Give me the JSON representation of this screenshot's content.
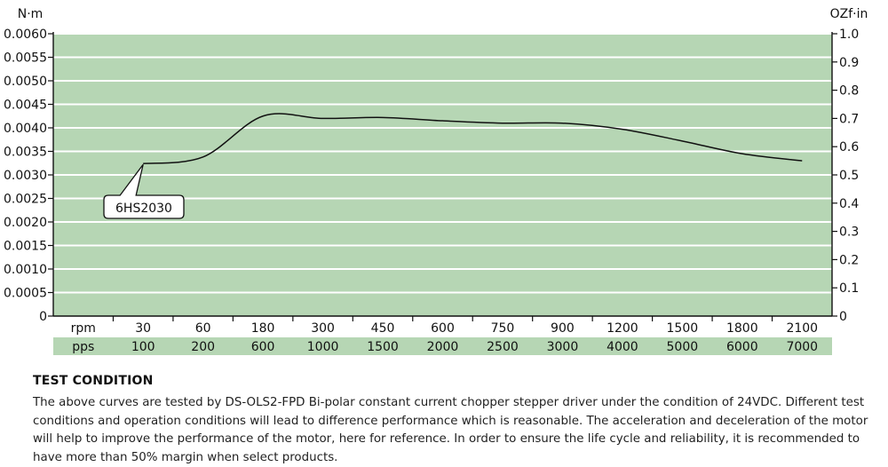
{
  "chart_data": {
    "type": "line",
    "units": {
      "left": "N·m",
      "right": "OZf·in"
    },
    "y_left": {
      "range": [
        0,
        0.006
      ],
      "tick_values": [
        0,
        0.0005,
        0.001,
        0.0015,
        0.002,
        0.0025,
        0.003,
        0.0035,
        0.004,
        0.0045,
        0.005,
        0.0055,
        0.006
      ],
      "tick_labels": [
        "0",
        "0.0005",
        "0.0010",
        "0.0015",
        "0.0020",
        "0.0025",
        "0.0030",
        "0.0035",
        "0.0040",
        "0.0045",
        "0.0050",
        "0.0055",
        "0.0060"
      ]
    },
    "y_right": {
      "range": [
        0,
        1.0
      ],
      "tick_values": [
        0,
        0.1,
        0.2,
        0.3,
        0.4,
        0.5,
        0.6,
        0.7,
        0.8,
        0.9,
        1.0
      ],
      "tick_labels": [
        "0",
        "0.1",
        "0.2",
        "0.3",
        "0.4",
        "0.5",
        "0.6",
        "0.7",
        "0.8",
        "0.9",
        "1.0"
      ]
    },
    "x_rows": [
      {
        "label": "rpm",
        "values": [
          "30",
          "60",
          "180",
          "300",
          "450",
          "600",
          "750",
          "900",
          "1200",
          "1500",
          "1800",
          "2100"
        ]
      },
      {
        "label": "pps",
        "values": [
          "100",
          "200",
          "600",
          "1000",
          "1500",
          "2000",
          "2500",
          "3000",
          "4000",
          "5000",
          "6000",
          "7000"
        ]
      }
    ],
    "series": [
      {
        "name": "6HS2030",
        "color": "#111111",
        "points": [
          {
            "rpm": 30,
            "nm": 0.00324
          },
          {
            "rpm": 60,
            "nm": 0.00338
          },
          {
            "rpm": 180,
            "nm": 0.00425
          },
          {
            "rpm": 300,
            "nm": 0.0042
          },
          {
            "rpm": 450,
            "nm": 0.00422
          },
          {
            "rpm": 600,
            "nm": 0.00415
          },
          {
            "rpm": 750,
            "nm": 0.0041
          },
          {
            "rpm": 900,
            "nm": 0.0041
          },
          {
            "rpm": 1200,
            "nm": 0.00397
          },
          {
            "rpm": 1500,
            "nm": 0.00372
          },
          {
            "rpm": 1800,
            "nm": 0.00345
          },
          {
            "rpm": 2100,
            "nm": 0.0033
          }
        ]
      }
    ],
    "grid": true,
    "colors": {
      "plot_background": "#b6d6b4",
      "pps_row_background": "#b6d6b4",
      "gridline": "#ffffff",
      "axis": "#111111"
    }
  },
  "test_condition": {
    "title": "TEST CONDITION",
    "text": "The above curves are tested by DS-OLS2-FPD Bi-polar constant current chopper stepper driver under the condition of 24VDC. Different test conditions and operation conditions will lead to difference performance which is reasonable. The acceleration and deceleration of the motor will help to improve the performance of the motor, here for reference. In order to ensure the life cycle and reliability, it is recommended to have more than 50% margin when select products."
  }
}
